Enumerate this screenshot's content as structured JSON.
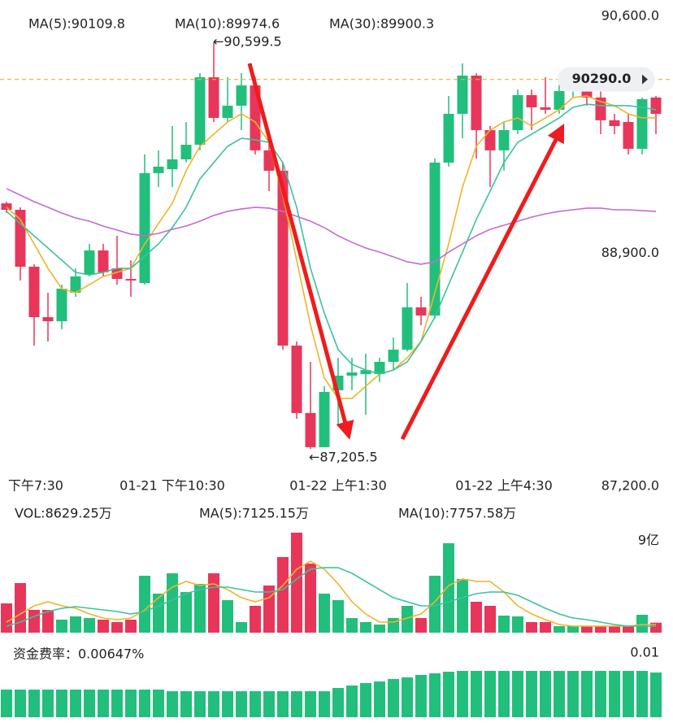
{
  "chart_data": [
    {
      "type": "candlestick",
      "categories": [
        "下午7:30",
        null,
        null,
        null,
        null,
        null,
        null,
        null,
        null,
        null,
        null,
        null,
        "01-21 下午10:30",
        null,
        null,
        null,
        null,
        null,
        null,
        null,
        null,
        null,
        null,
        null,
        "01-22 上午1:30",
        null,
        null,
        null,
        null,
        null,
        null,
        null,
        null,
        null,
        null,
        null,
        "01-22 上午4:30",
        null,
        null,
        null,
        null,
        null,
        null,
        null,
        null,
        null,
        null,
        null
      ],
      "open": [
        89256,
        89202,
        88727,
        88306,
        88272,
        88510,
        88659,
        88863,
        88714,
        88625,
        88591,
        89508,
        89541,
        89623,
        89745,
        90308,
        89969,
        90071,
        90240,
        89698,
        89528,
        88069,
        87506,
        87221,
        87696,
        87818,
        87831,
        87831,
        87933,
        88035,
        88388,
        88320,
        89596,
        90003,
        90322,
        89867,
        89698,
        89867,
        90159,
        90057,
        90037,
        90193,
        90240,
        90139,
        89949,
        89935,
        89711,
        90139
      ],
      "high": [
        89270,
        89222,
        88747,
        88510,
        88578,
        88714,
        88917,
        88917,
        88985,
        88781,
        89664,
        89698,
        89901,
        89935,
        90342,
        90599.5,
        90308,
        90342,
        90308,
        89833,
        89596,
        88103,
        87933,
        87730,
        87967,
        87967,
        88001,
        87967,
        88137,
        88591,
        88476,
        89630,
        90152,
        90424,
        90342,
        89901,
        89935,
        90206,
        90206,
        90308,
        90274,
        90308,
        90274,
        90206,
        90003,
        90003,
        90139,
        90152
      ],
      "low": [
        89175,
        88612,
        88069,
        88103,
        88205,
        88476,
        88646,
        88646,
        88578,
        88476,
        88578,
        89392,
        89392,
        89596,
        89698,
        89935,
        89935,
        89867,
        89664,
        89358,
        88035,
        87458,
        87205.5,
        87221,
        87411,
        87696,
        87492,
        87764,
        87865,
        88021,
        88239,
        88293,
        89562,
        89799,
        89630,
        89392,
        89528,
        89833,
        89867,
        90003,
        90003,
        90139,
        90071,
        89833,
        89833,
        89664,
        89664,
        89833
      ],
      "close": [
        89202,
        88727,
        88306,
        88272,
        88544,
        88646,
        88863,
        88680,
        88625,
        88612,
        89508,
        89562,
        89623,
        89745,
        90308,
        89969,
        90071,
        90240,
        89698,
        89528,
        88069,
        87506,
        87221,
        87682,
        87818,
        87845,
        87865,
        87933,
        88035,
        88388,
        88320,
        89596,
        90003,
        90322,
        89867,
        89698,
        89867,
        90159,
        90057,
        90037,
        90193,
        90240,
        90139,
        89949,
        89901,
        89711,
        90125,
        90003
      ],
      "up_color": "#21bf7b",
      "down_color": "#e8365a",
      "series": [
        {
          "name": "MA(5):90109.8",
          "color": "#f0b429",
          "values": [
            89223,
            89121,
            88917,
            88714,
            88544,
            88510,
            88578,
            88646,
            88680,
            88714,
            88917,
            89087,
            89256,
            89528,
            89732,
            89833,
            89935,
            90003,
            89935,
            89765,
            89324,
            88781,
            88239,
            87798,
            87628,
            87628,
            87730,
            87831,
            87865,
            87967,
            88103,
            88510,
            88917,
            89392,
            89732,
            89867,
            89935,
            89969,
            89901,
            89969,
            90037,
            90139,
            90152,
            90105,
            90071,
            90003,
            89969,
            89969
          ]
        },
        {
          "name": "MA(10):89974.6",
          "color": "#3cc29f",
          "values": [
            89189,
            89087,
            88985,
            88883,
            88781,
            88680,
            88659,
            88680,
            88714,
            88714,
            88815,
            88917,
            89053,
            89223,
            89460,
            89596,
            89732,
            89799,
            89786,
            89765,
            89596,
            89223,
            88714,
            88340,
            88035,
            87913,
            87865,
            87831,
            87865,
            87933,
            88103,
            88306,
            88578,
            88849,
            89121,
            89358,
            89596,
            89765,
            89833,
            89901,
            89969,
            90057,
            90084,
            90071,
            90071,
            90071,
            90057,
            90037
          ]
        },
        {
          "name": "MA(30):89900.3",
          "color": "#c46ad6",
          "values": [
            89379,
            89324,
            89270,
            89223,
            89175,
            89134,
            89107,
            89066,
            89033,
            88999,
            88985,
            89005,
            89039,
            89066,
            89107,
            89155,
            89189,
            89209,
            89223,
            89216,
            89189,
            89148,
            89107,
            89053,
            88985,
            88931,
            88883,
            88849,
            88809,
            88768,
            88748,
            88768,
            88849,
            88917,
            88985,
            89039,
            89073,
            89107,
            89141,
            89168,
            89189,
            89202,
            89216,
            89216,
            89202,
            89202,
            89195,
            89189
          ]
        }
      ],
      "ylim": [
        87200,
        90600
      ],
      "yticks": [
        {
          "value": 90600,
          "label": "90,600.0"
        },
        {
          "value": 88900,
          "label": "88,900.0"
        },
        {
          "value": 87200,
          "label": "87,200.0"
        }
      ],
      "annotations": [
        "←90,599.5",
        "←87,205.5"
      ],
      "last_price": {
        "value": 90290,
        "label": "90290.0",
        "color": "#e8b33a"
      }
    },
    {
      "type": "bar",
      "title": "VOL:8629.25万",
      "values": [
        25308,
        42883,
        19684,
        19684,
        11248,
        14060,
        12654,
        11248,
        9139,
        11248,
        49210,
        33744,
        51319,
        35150,
        42180,
        51319,
        28120,
        9139,
        23199,
        40774,
        65379,
        86469,
        59755,
        33744,
        28120,
        12654,
        9139,
        7030,
        12654,
        23199,
        12654,
        49210,
        77330,
        46398,
        26714,
        23199,
        14763,
        14060,
        9139,
        9139,
        5624,
        5624,
        5624,
        5624,
        5624,
        5624,
        15466,
        8629.25
      ],
      "series": [
        {
          "name": "MA(5):7125.15万",
          "color": "#f0b429",
          "values": [
            9139,
            16169,
            23199,
            26714,
            23199,
            21090,
            16169,
            12654,
            11248,
            12654,
            19684,
            30229,
            39368,
            44289,
            40774,
            42180,
            37259,
            30229,
            26714,
            30229,
            40774,
            54834,
            61864,
            54834,
            42180,
            26714,
            16169,
            9139,
            9139,
            12654,
            16169,
            26714,
            40774,
            46398,
            44289,
            44289,
            35150,
            23199,
            16169,
            11248,
            7030,
            5624,
            5624,
            5624,
            5624,
            5624,
            7030,
            7030
          ]
        },
        {
          "name": "MA(10):7757.58万",
          "color": "#3cc29f",
          "values": [
            5624,
            9139,
            14060,
            18278,
            21090,
            22496,
            21090,
            19684,
            18278,
            16169,
            18278,
            23199,
            28120,
            33744,
            37259,
            39368,
            39368,
            37259,
            35150,
            35150,
            37259,
            46398,
            54834,
            56240,
            56240,
            51319,
            44289,
            37259,
            30229,
            26714,
            23199,
            23199,
            26714,
            30229,
            33744,
            35150,
            35150,
            32338,
            26714,
            21090,
            16169,
            12654,
            11248,
            9139,
            7030,
            5624,
            5624,
            5624
          ]
        }
      ],
      "ylim": [
        0,
        90000
      ],
      "yticks": [
        {
          "value": 90000,
          "label": "9亿"
        }
      ]
    },
    {
      "type": "bar",
      "title": "资金费率：0.00647%",
      "color": "#21bf7b",
      "values": [
        0.00486,
        0.00486,
        0.00486,
        0.00486,
        0.00486,
        0.00486,
        0.00486,
        0.00486,
        0.00486,
        0.00486,
        0.00486,
        0.00486,
        0.00457,
        0.00457,
        0.00457,
        0.00457,
        0.00457,
        0.00457,
        0.00457,
        0.00457,
        0.00457,
        0.00457,
        0.00457,
        0.00457,
        0.00514,
        0.00557,
        0.006,
        0.00629,
        0.00671,
        0.007,
        0.00743,
        0.00771,
        0.008,
        0.00814,
        0.00814,
        0.00814,
        0.00814,
        0.00814,
        0.00814,
        0.00814,
        0.00814,
        0.00814,
        0.00814,
        0.00814,
        0.00814,
        0.00814,
        0.00814,
        0.00786
      ],
      "ylim": [
        0,
        0.01
      ],
      "yticks": [
        0.01
      ]
    }
  ]
}
